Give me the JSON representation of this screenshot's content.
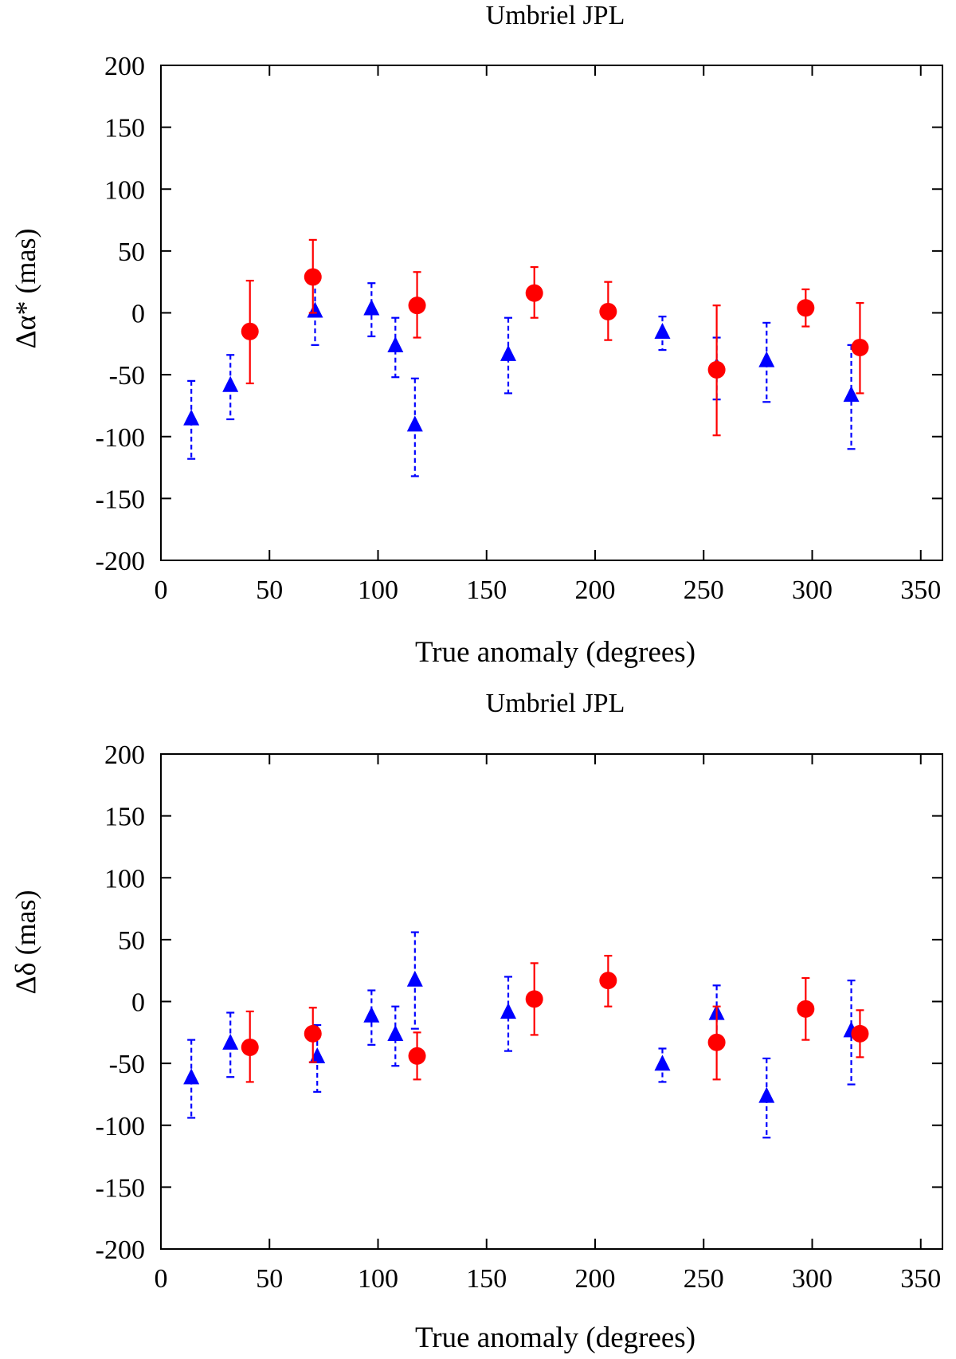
{
  "chart_data": [
    {
      "type": "scatter",
      "title": "Umbriel JPL",
      "xlabel": "True anomaly (degrees)",
      "ylabel": "Δα* (mas)",
      "xlim": [
        0,
        360
      ],
      "ylim": [
        -200,
        200
      ],
      "xticks": [
        0,
        50,
        100,
        150,
        200,
        250,
        300,
        350
      ],
      "yticks": [
        200,
        150,
        100,
        50,
        0,
        -50,
        -100,
        -150,
        -200
      ],
      "series": [
        {
          "name": "triangles",
          "marker": "triangle",
          "color": "#0000ff",
          "errorbar_style": "dashed",
          "points": [
            {
              "x": 14,
              "y": -86,
              "lo": -118,
              "hi": -55
            },
            {
              "x": 32,
              "y": -59,
              "lo": -86,
              "hi": -34
            },
            {
              "x": 71,
              "y": 1,
              "lo": -26,
              "hi": 26
            },
            {
              "x": 97,
              "y": 3,
              "lo": -19,
              "hi": 24
            },
            {
              "x": 108,
              "y": -27,
              "lo": -52,
              "hi": -4
            },
            {
              "x": 117,
              "y": -91,
              "lo": -132,
              "hi": -53
            },
            {
              "x": 160,
              "y": -34,
              "lo": -65,
              "hi": -4
            },
            {
              "x": 231,
              "y": -16,
              "lo": -30,
              "hi": -3
            },
            {
              "x": 256,
              "y": -44,
              "lo": -70,
              "hi": -20
            },
            {
              "x": 279,
              "y": -39,
              "lo": -72,
              "hi": -8
            },
            {
              "x": 318,
              "y": -67,
              "lo": -110,
              "hi": -26
            }
          ]
        },
        {
          "name": "circles",
          "marker": "circle",
          "color": "#ff0000",
          "errorbar_style": "solid",
          "points": [
            {
              "x": 41,
              "y": -15,
              "lo": -57,
              "hi": 26
            },
            {
              "x": 70,
              "y": 29,
              "lo": 0,
              "hi": 59
            },
            {
              "x": 118,
              "y": 6,
              "lo": -20,
              "hi": 33
            },
            {
              "x": 172,
              "y": 16,
              "lo": -4,
              "hi": 37
            },
            {
              "x": 206,
              "y": 1,
              "lo": -22,
              "hi": 25
            },
            {
              "x": 256,
              "y": -46,
              "lo": -99,
              "hi": 6
            },
            {
              "x": 297,
              "y": 4,
              "lo": -11,
              "hi": 19
            },
            {
              "x": 322,
              "y": -28,
              "lo": -65,
              "hi": 8
            }
          ]
        }
      ]
    },
    {
      "type": "scatter",
      "title": "Umbriel JPL",
      "xlabel": "True anomaly (degrees)",
      "ylabel": "Δδ (mas)",
      "xlim": [
        0,
        360
      ],
      "ylim": [
        -200,
        200
      ],
      "xticks": [
        0,
        50,
        100,
        150,
        200,
        250,
        300,
        350
      ],
      "yticks": [
        200,
        150,
        100,
        50,
        0,
        -50,
        -100,
        -150,
        -200
      ],
      "series": [
        {
          "name": "triangles",
          "marker": "triangle",
          "color": "#0000ff",
          "errorbar_style": "dashed",
          "points": [
            {
              "x": 14,
              "y": -62,
              "lo": -94,
              "hi": -31
            },
            {
              "x": 32,
              "y": -34,
              "lo": -61,
              "hi": -9
            },
            {
              "x": 72,
              "y": -45,
              "lo": -73,
              "hi": -19
            },
            {
              "x": 97,
              "y": -12,
              "lo": -35,
              "hi": 9
            },
            {
              "x": 108,
              "y": -27,
              "lo": -52,
              "hi": -4
            },
            {
              "x": 117,
              "y": 17,
              "lo": -22,
              "hi": 56
            },
            {
              "x": 160,
              "y": -9,
              "lo": -40,
              "hi": 20
            },
            {
              "x": 231,
              "y": -51,
              "lo": -65,
              "hi": -38
            },
            {
              "x": 256,
              "y": -10,
              "lo": -35,
              "hi": 13
            },
            {
              "x": 279,
              "y": -77,
              "lo": -110,
              "hi": -46
            },
            {
              "x": 318,
              "y": -24,
              "lo": -67,
              "hi": 17
            }
          ]
        },
        {
          "name": "circles",
          "marker": "circle",
          "color": "#ff0000",
          "errorbar_style": "solid",
          "points": [
            {
              "x": 41,
              "y": -37,
              "lo": -65,
              "hi": -8
            },
            {
              "x": 70,
              "y": -26,
              "lo": -49,
              "hi": -5
            },
            {
              "x": 118,
              "y": -44,
              "lo": -63,
              "hi": -25
            },
            {
              "x": 172,
              "y": 2,
              "lo": -27,
              "hi": 31
            },
            {
              "x": 206,
              "y": 17,
              "lo": -4,
              "hi": 37
            },
            {
              "x": 256,
              "y": -33,
              "lo": -63,
              "hi": -4
            },
            {
              "x": 297,
              "y": -6,
              "lo": -31,
              "hi": 19
            },
            {
              "x": 322,
              "y": -26,
              "lo": -45,
              "hi": -7
            }
          ]
        }
      ]
    }
  ]
}
